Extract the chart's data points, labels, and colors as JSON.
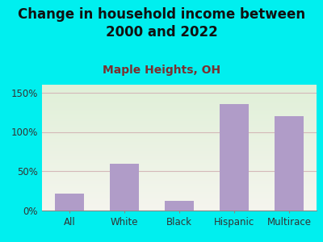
{
  "title": "Change in household income between\n2000 and 2022",
  "subtitle": "Maple Heights, OH",
  "categories": [
    "All",
    "White",
    "Black",
    "Hispanic",
    "Multirace"
  ],
  "values": [
    22,
    60,
    12,
    135,
    120
  ],
  "bar_color": "#b09cc8",
  "outer_bg": "#00efef",
  "ylim": [
    0,
    160
  ],
  "yticks": [
    0,
    50,
    100,
    150
  ],
  "ytick_labels": [
    "0%",
    "50%",
    "100%",
    "150%"
  ],
  "title_fontsize": 12,
  "subtitle_fontsize": 10,
  "tick_fontsize": 8.5,
  "grid_color": "#d4b8b8",
  "subtitle_color": "#7a3030",
  "title_color": "#111111"
}
